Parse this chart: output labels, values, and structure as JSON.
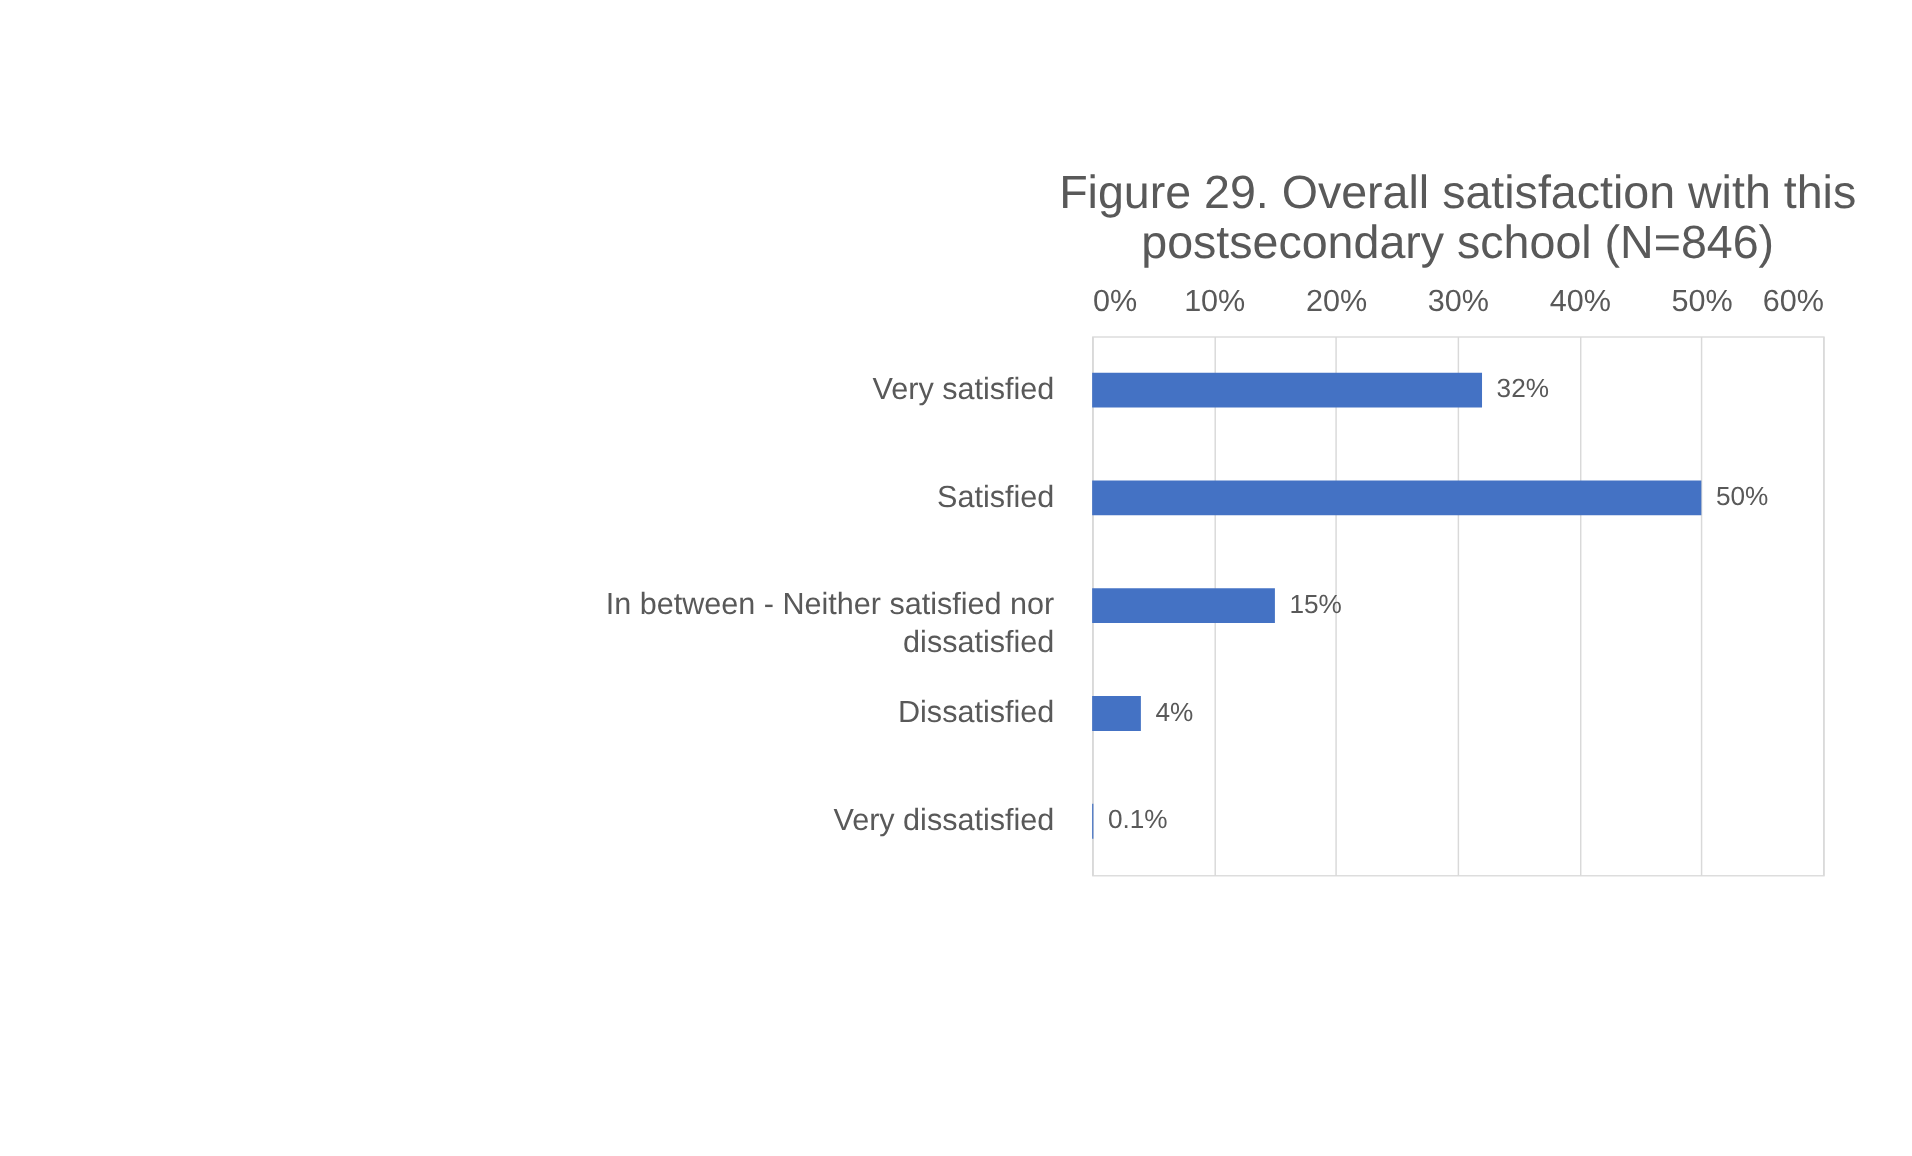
{
  "chart_data": {
    "type": "bar",
    "orientation": "horizontal",
    "title": "Figure 29. Overall satisfaction with this postsecondary school (N=846)",
    "categories": [
      "Very satisfied",
      "Satisfied",
      "In between - Neither satisfied nor dissatisfied",
      "Dissatisfied",
      "Very dissatisfied"
    ],
    "values": [
      32,
      50,
      15,
      4,
      0.1
    ],
    "value_labels": [
      "32%",
      "50%",
      "15%",
      "4%",
      "0.1%"
    ],
    "color": "#4472c4",
    "xlim": [
      0,
      60
    ],
    "xticks": [
      {
        "value": 0,
        "label": "0%"
      },
      {
        "value": 10,
        "label": "10%"
      },
      {
        "value": 20,
        "label": "20%"
      },
      {
        "value": 30,
        "label": "30%"
      },
      {
        "value": 40,
        "label": "40%"
      },
      {
        "value": 50,
        "label": "50%"
      },
      {
        "value": 60,
        "label": "60%"
      }
    ],
    "grid": "x"
  }
}
